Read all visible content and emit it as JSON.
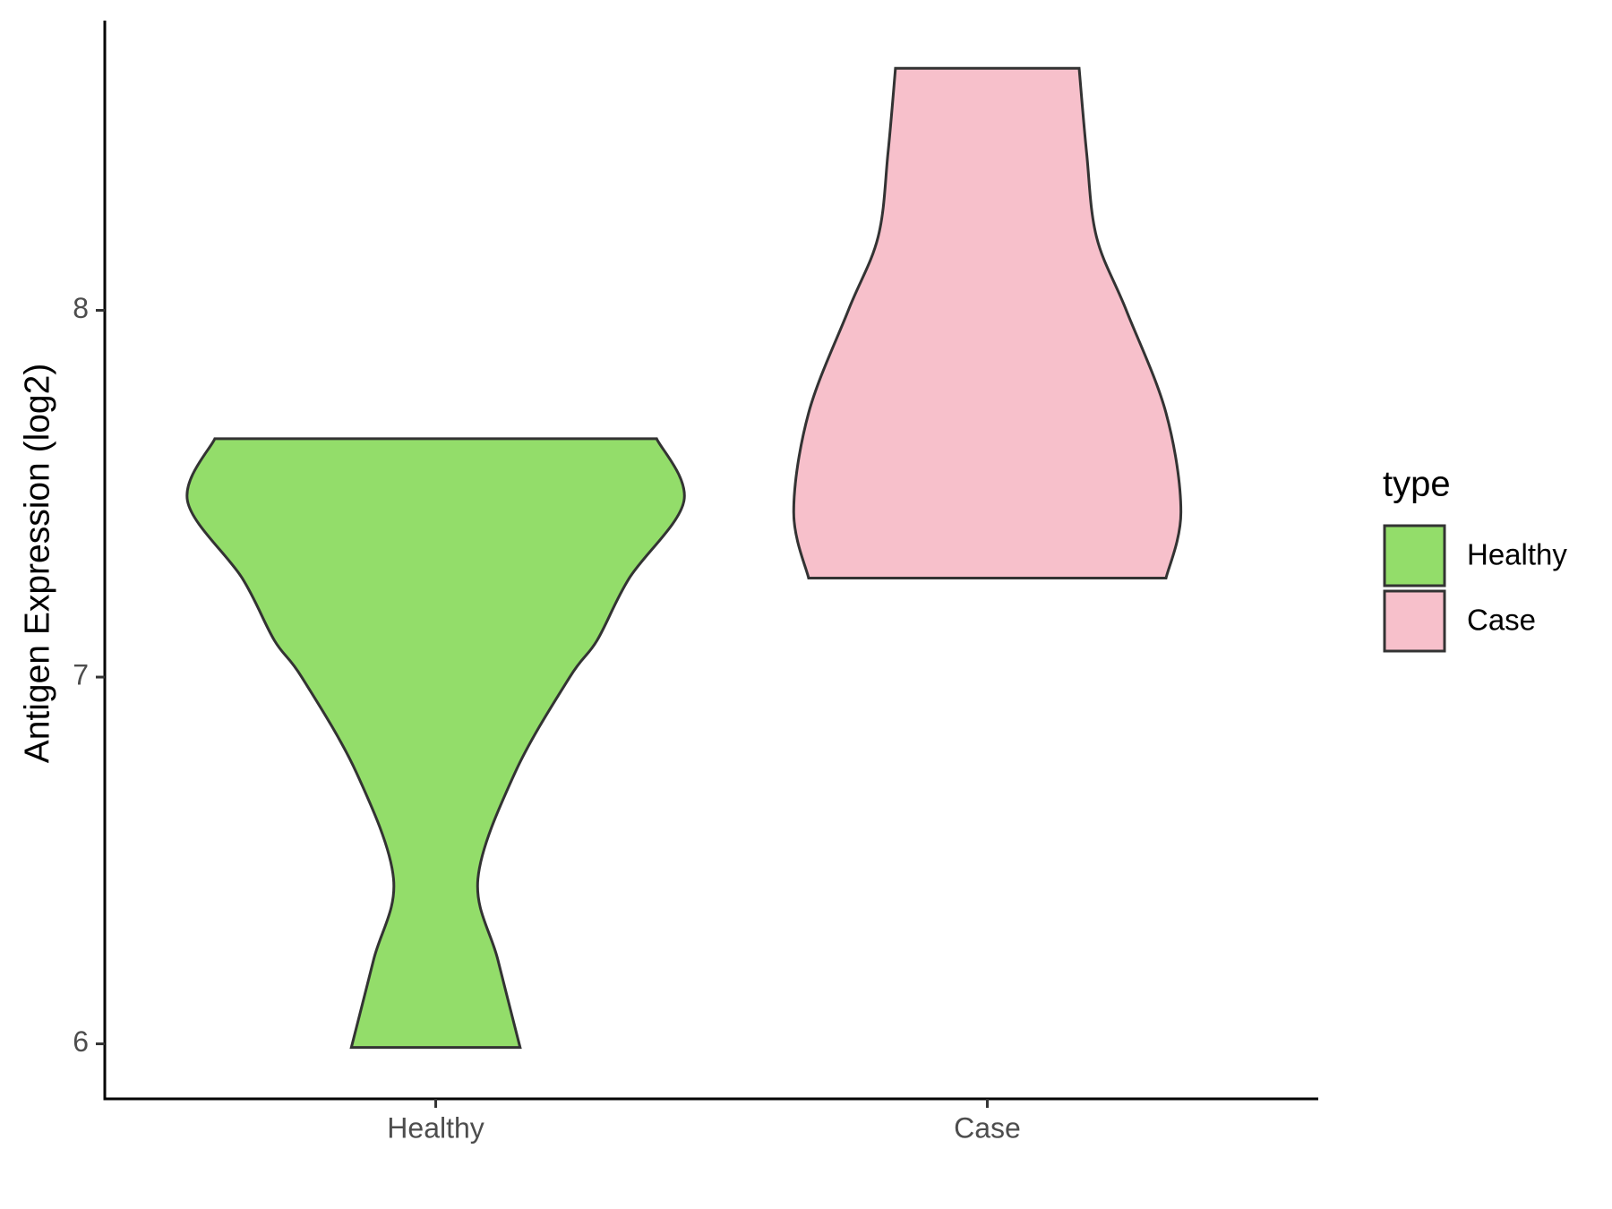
{
  "chart_data": {
    "type": "violin",
    "y_label": "Antigen Expression (log2)",
    "legend_title": "type",
    "categories": [
      "Healthy",
      "Case"
    ],
    "series": [
      {
        "name": "Healthy",
        "color": "#93dd6a",
        "y": [
          5.99,
          6.23,
          6.45,
          6.74,
          7.0,
          7.1,
          7.27,
          7.48,
          7.65
        ],
        "widths": [
          0.34,
          0.25,
          0.17,
          0.32,
          0.54,
          0.65,
          0.78,
          1.0,
          0.89
        ]
      },
      {
        "name": "Case",
        "color": "#f7c0cb",
        "y": [
          7.27,
          7.45,
          7.72,
          8.0,
          8.2,
          8.43,
          8.66
        ],
        "widths": [
          0.72,
          0.78,
          0.72,
          0.56,
          0.44,
          0.4,
          0.37
        ]
      }
    ],
    "ylim": [
      5.85,
      8.79
    ],
    "yticks": [
      6,
      7,
      8
    ],
    "grid": false
  }
}
